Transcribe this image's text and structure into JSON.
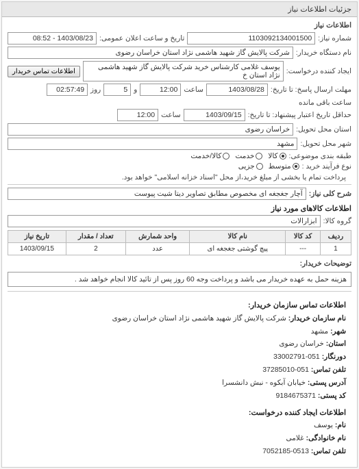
{
  "header": {
    "title": "جزئیات اطلاعات نیاز"
  },
  "panel": {
    "title": "اطلاعات نیاز"
  },
  "need": {
    "number_label": "شماره نیاز:",
    "number": "1103092134001500",
    "public_time_label": "تاریخ و ساعت اعلان عمومی:",
    "public_time": "1403/08/23 - 08:52",
    "buyer_org_label": "نام دستگاه خریدار:",
    "buyer_org": "شرکت پالایش گاز شهید هاشمی نژاد    استان خراسان رضوی",
    "requester_label": "ایجاد کننده درخواست:",
    "requester": "یوسف غلامی کارشناس خرید شرکت پالایش گاز شهید هاشمی نژاد   استان خ",
    "contact_btn": "اطلاعات تماس خریدار",
    "deadline_send_label": "مهلت ارسال پاسخ: تا تاریخ:",
    "deadline_receive_label": "حداقل تاریخ اعتبار پیشنهاد: تا تاریخ:",
    "date1": "1403/08/28",
    "time_label": "ساعت",
    "time1": "12:00",
    "and": "و",
    "days": "5",
    "day_word": "روز",
    "remain": "02:57:49",
    "remain_label": "ساعت باقی مانده",
    "date2": "1403/09/15",
    "time2": "12:00",
    "deliver_state_label": "استان محل تحویل:",
    "deliver_state": "خراسان رضوی",
    "deliver_city_label": "شهر محل تحویل:",
    "deliver_city": "مشهد",
    "group_label": "طبقه بندی موضوعی:",
    "r_goods": "کالا",
    "r_service": "خدمت",
    "r_goods_service": "کالا/خدمت",
    "process_label": "نوع فرآیند خرید :",
    "r_avg": "متوسط",
    "r_minor": "جزیی",
    "process_note": "پرداخت تمام یا بخشی از مبلغ خرید،از محل \"اسناد خزانه اسلامی\" خواهد بود.",
    "desc_label": "شرح کلی نیاز:",
    "desc": "آچار جغجغه ای مخصوص مطابق تصاویر دیتا شیت پیوست"
  },
  "goods": {
    "section_title": "اطلاعات کالاهای مورد نیاز",
    "group_label": "گروه کالا:",
    "group_value": "ابزارالات",
    "columns": [
      "ردیف",
      "کد کالا",
      "نام کالا",
      "واحد شمارش",
      "تعداد / مقدار",
      "تاریخ نیاز"
    ],
    "rows": [
      [
        "1",
        "---",
        "پیچ گوشتی جغجغه ای",
        "عدد",
        "2",
        "1403/09/15"
      ]
    ]
  },
  "buyer_note": {
    "label": "توضیحات خریدار:",
    "text": "هزینه حمل به عهده خریدار می باشد و پرداخت وجه 60 روز پس از تائید کالا انجام خواهد شد ."
  },
  "contact": {
    "section_title": "اطلاعات تماس سازمان خریدار:",
    "org_label": "نام سازمان خریدار:",
    "org": "شرکت پالایش گاز شهید هاشمی نژاد استان خراسان رضوی",
    "city_label": "شهر:",
    "city": "مشهد",
    "state_label": "استان:",
    "state": "خراسان رضوی",
    "fax_label": "دورنگار:",
    "fax": "051-33002791",
    "phone_label": "تلفن تماس:",
    "phone": "051-37285010",
    "addr_label": "آدرس پستی:",
    "addr": "خیابان آبکوه - نبش دانشسرا",
    "post_label": "کد پستی:",
    "post": "9184675371",
    "creator_title": "اطلاعات ایجاد کننده درخواست:",
    "name_label": "نام:",
    "name": "یوسف",
    "family_label": "نام خانوادگی:",
    "family": "غلامی",
    "cphone_label": "تلفن تماس:",
    "cphone": "0513-7052185"
  }
}
